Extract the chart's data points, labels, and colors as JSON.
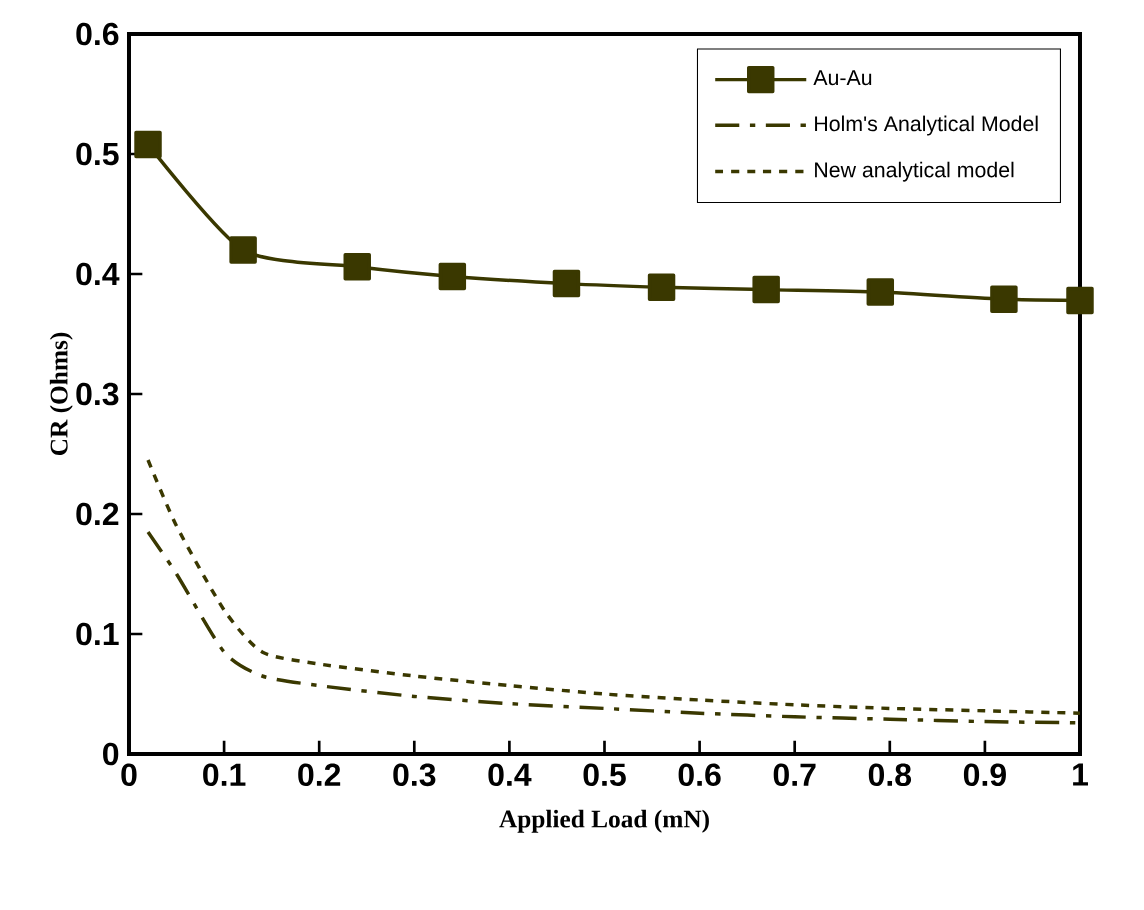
{
  "chart_data": {
    "type": "line",
    "xlabel": "Applied Load (mN)",
    "ylabel": "CR (Ohms)",
    "x": [
      0.02,
      0.12,
      0.24,
      0.34,
      0.46,
      0.56,
      0.67,
      0.79,
      0.92,
      1.0
    ],
    "xlim": [
      0,
      1
    ],
    "xticks": [
      0,
      0.1,
      0.2,
      0.3,
      0.4,
      0.5,
      0.6,
      0.7,
      0.8,
      0.9,
      1
    ],
    "ylim": [
      0,
      0.6
    ],
    "yticks": [
      0,
      0.1,
      0.2,
      0.3,
      0.4,
      0.5,
      0.6
    ],
    "grid": false,
    "legend": "top right",
    "series": [
      {
        "name": "Au-Au",
        "color": "#3a3800",
        "marker": "square",
        "line_style": "solid",
        "values": [
          0.508,
          0.42,
          0.406,
          0.398,
          0.392,
          0.389,
          0.387,
          0.385,
          0.379,
          0.378
        ]
      },
      {
        "name": "Holm's Analytical Model",
        "color": "#3a3800",
        "marker": "none",
        "line_style": "dashed",
        "x": [
          0.02,
          0.05,
          0.1,
          0.14,
          0.2,
          0.3,
          0.4,
          0.5,
          0.6,
          0.7,
          0.8,
          0.9,
          1.0
        ],
        "values": [
          0.185,
          0.15,
          0.085,
          0.065,
          0.057,
          0.048,
          0.042,
          0.038,
          0.034,
          0.031,
          0.029,
          0.027,
          0.026
        ]
      },
      {
        "name": "New analytical model",
        "color": "#3a3800",
        "marker": "none",
        "line_style": "dotted",
        "x": [
          0.02,
          0.05,
          0.1,
          0.14,
          0.2,
          0.3,
          0.4,
          0.5,
          0.6,
          0.7,
          0.8,
          0.9,
          1.0
        ],
        "values": [
          0.245,
          0.19,
          0.12,
          0.085,
          0.075,
          0.065,
          0.057,
          0.05,
          0.045,
          0.041,
          0.038,
          0.036,
          0.034
        ]
      }
    ]
  }
}
